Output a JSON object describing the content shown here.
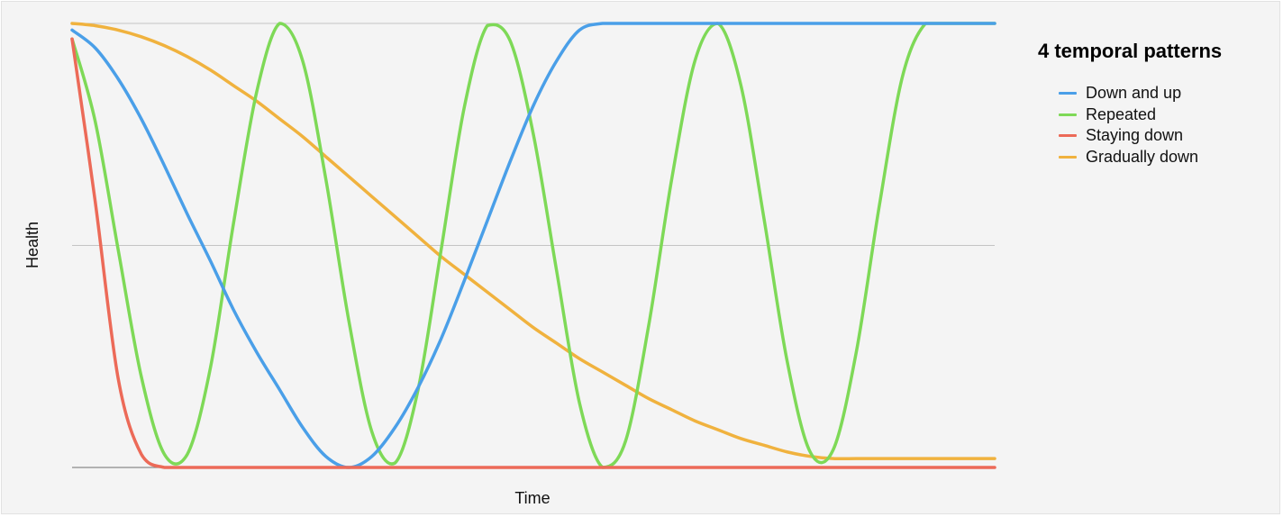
{
  "chart_data": {
    "type": "line",
    "title": "4 temporal patterns",
    "xlabel": "Time",
    "ylabel": "Health",
    "xlim": [
      0,
      100
    ],
    "ylim": [
      0,
      2
    ],
    "grid": "horizontal",
    "legend_position": "right",
    "x": [
      0,
      2.5,
      5,
      7.5,
      10,
      12.5,
      15,
      17.5,
      20,
      22.5,
      25,
      27.5,
      30,
      32.5,
      35,
      37.5,
      40,
      42.5,
      45,
      47.5,
      50,
      52.5,
      55,
      57.5,
      60,
      62.5,
      65,
      67.5,
      70,
      72.5,
      75,
      77.5,
      80,
      82.5,
      85,
      87.5,
      90,
      92.5,
      95,
      97.5,
      100
    ],
    "series": [
      {
        "name": "Down and up",
        "color": "#4a9fe8",
        "values": [
          1.97,
          1.89,
          1.75,
          1.57,
          1.36,
          1.14,
          0.93,
          0.71,
          0.52,
          0.35,
          0.18,
          0.05,
          0.0,
          0.05,
          0.18,
          0.36,
          0.58,
          0.84,
          1.11,
          1.38,
          1.63,
          1.83,
          1.97,
          2.0,
          2.0,
          2.0,
          2.0,
          2.0,
          2.0,
          2.0,
          2.0,
          2.0,
          2.0,
          2.0,
          2.0,
          2.0,
          2.0,
          2.0,
          2.0,
          2.0,
          2.0
        ]
      },
      {
        "name": "Repeated",
        "color": "#7ed957",
        "values": [
          1.93,
          1.56,
          0.98,
          0.41,
          0.06,
          0.06,
          0.45,
          1.1,
          1.69,
          2.0,
          1.83,
          1.3,
          0.66,
          0.16,
          0.02,
          0.35,
          0.98,
          1.62,
          1.99,
          1.92,
          1.5,
          0.89,
          0.29,
          0.0,
          0.12,
          0.64,
          1.3,
          1.83,
          2.0,
          1.72,
          1.12,
          0.48,
          0.07,
          0.08,
          0.52,
          1.18,
          1.76,
          2.0,
          2.0,
          2.0,
          2.0
        ]
      },
      {
        "name": "Staying down",
        "color": "#ec6a58",
        "values": [
          1.93,
          1.2,
          0.4,
          0.06,
          0.0,
          0.0,
          0.0,
          0.0,
          0.0,
          0.0,
          0.0,
          0.0,
          0.0,
          0.0,
          0.0,
          0.0,
          0.0,
          0.0,
          0.0,
          0.0,
          0.0,
          0.0,
          0.0,
          0.0,
          0.0,
          0.0,
          0.0,
          0.0,
          0.0,
          0.0,
          0.0,
          0.0,
          0.0,
          0.0,
          0.0,
          0.0,
          0.0,
          0.0,
          0.0,
          0.0,
          0.0
        ]
      },
      {
        "name": "Gradually down",
        "color": "#f0b23e",
        "values": [
          2.0,
          1.99,
          1.97,
          1.94,
          1.9,
          1.85,
          1.79,
          1.72,
          1.65,
          1.57,
          1.49,
          1.4,
          1.31,
          1.22,
          1.13,
          1.04,
          0.95,
          0.87,
          0.79,
          0.71,
          0.63,
          0.56,
          0.49,
          0.43,
          0.37,
          0.31,
          0.26,
          0.21,
          0.17,
          0.13,
          0.1,
          0.07,
          0.05,
          0.04,
          0.04,
          0.04,
          0.04,
          0.04,
          0.04,
          0.04,
          0.04
        ]
      }
    ]
  }
}
